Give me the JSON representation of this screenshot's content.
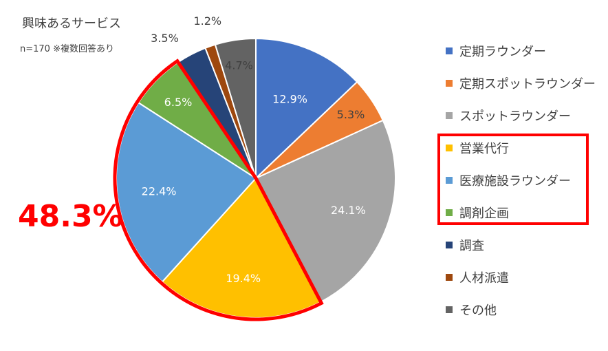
{
  "chart_data": {
    "type": "pie",
    "title": "興味あるサービス",
    "subtitle": "n=170 ※複数回答あり",
    "categories": [
      "定期ラウンダー",
      "定期スポットラウンダー",
      "スポットラウンダー",
      "営業代行",
      "医療施設ラウンダー",
      "調剤企画",
      "調査",
      "人材派遣",
      "その他"
    ],
    "values": [
      12.9,
      5.3,
      24.1,
      19.4,
      22.4,
      6.5,
      3.5,
      1.2,
      4.7
    ],
    "labels": [
      "12.9%",
      "5.3%",
      "24.1%",
      "19.4%",
      "22.4%",
      "6.5%",
      "3.5%",
      "1.2%",
      "4.7%"
    ],
    "colors": [
      "#4472c4",
      "#ed7d31",
      "#a5a5a5",
      "#ffc000",
      "#5b9bd5",
      "#70ad47",
      "#264478",
      "#9e480e",
      "#636363"
    ],
    "highlight": {
      "categories": [
        "営業代行",
        "医療施設ラウンダー",
        "調剤企画"
      ],
      "total_label": "48.3%",
      "color": "#ff0000"
    },
    "legend_placement": "right"
  }
}
